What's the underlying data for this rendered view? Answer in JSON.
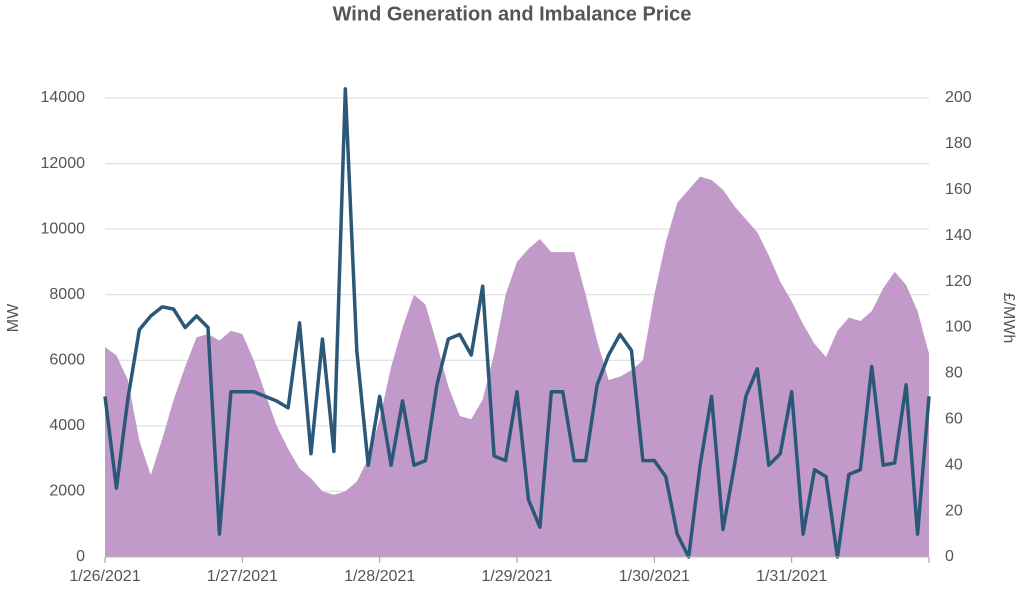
{
  "chart_data": {
    "type": "combo",
    "title": "Wind Generation and Imbalance Price",
    "ylabel": "MW",
    "y2label": "£/MWh",
    "categories": [
      "1/26/2021",
      null,
      null,
      null,
      null,
      null,
      null,
      null,
      null,
      null,
      null,
      null,
      "1/27/2021",
      null,
      null,
      null,
      null,
      null,
      null,
      null,
      null,
      null,
      null,
      null,
      "1/28/2021",
      null,
      null,
      null,
      null,
      null,
      null,
      null,
      null,
      null,
      null,
      null,
      "1/29/2021",
      null,
      null,
      null,
      null,
      null,
      null,
      null,
      null,
      null,
      null,
      null,
      "1/30/2021",
      null,
      null,
      null,
      null,
      null,
      null,
      null,
      null,
      null,
      null,
      null,
      "1/31/2021",
      null,
      null,
      null,
      null,
      null,
      null,
      null,
      null,
      null,
      null,
      null,
      null
    ],
    "series": [
      {
        "name": "Wind Generation",
        "type": "area",
        "axis": "y",
        "color": "#c29ac9",
        "values": [
          6400,
          6150,
          5400,
          3550,
          2500,
          3600,
          4800,
          5800,
          6700,
          6800,
          6600,
          6900,
          6800,
          6000,
          5000,
          4000,
          3300,
          2700,
          2400,
          2000,
          1900,
          2000,
          2300,
          3000,
          4200,
          5800,
          7000,
          8000,
          7700,
          6500,
          5200,
          4300,
          4200,
          4800,
          6200,
          8000,
          9000,
          9400,
          9700,
          9300,
          9300,
          9300,
          8000,
          6600,
          5400,
          5500,
          5700,
          6000,
          8000,
          9600,
          10800,
          11200,
          11600,
          11500,
          11200,
          10700,
          10300,
          9900,
          9200,
          8400,
          7800,
          7100,
          6500,
          6100,
          6900,
          7300,
          7200,
          7500,
          8200,
          8700,
          8300,
          7500,
          6200
        ]
      },
      {
        "name": "Imbalance Price",
        "type": "line",
        "axis": "y2",
        "color": "#2b5878",
        "values": [
          70,
          30,
          69,
          99,
          105,
          109,
          108,
          100,
          105,
          100,
          10,
          72,
          72,
          72,
          70,
          68,
          65,
          102,
          45,
          95,
          46,
          204,
          90,
          40,
          70,
          40,
          68,
          40,
          42,
          75,
          95,
          97,
          88,
          118,
          44,
          42,
          72,
          25,
          13,
          72,
          72,
          42,
          42,
          75,
          88,
          97,
          90,
          42,
          42,
          35,
          10,
          0,
          40,
          70,
          12,
          40,
          70,
          82,
          40,
          45,
          72,
          10,
          38,
          35,
          0,
          36,
          38,
          83,
          40,
          41,
          75,
          10,
          70
        ]
      }
    ],
    "ylim": [
      0,
      14000
    ],
    "yticks": [
      0,
      2000,
      4000,
      6000,
      8000,
      10000,
      12000,
      14000
    ],
    "y2lim": [
      0,
      200
    ],
    "y2ticks": [
      0,
      20,
      40,
      60,
      80,
      100,
      120,
      140,
      160,
      180,
      200
    ],
    "grid": true
  }
}
